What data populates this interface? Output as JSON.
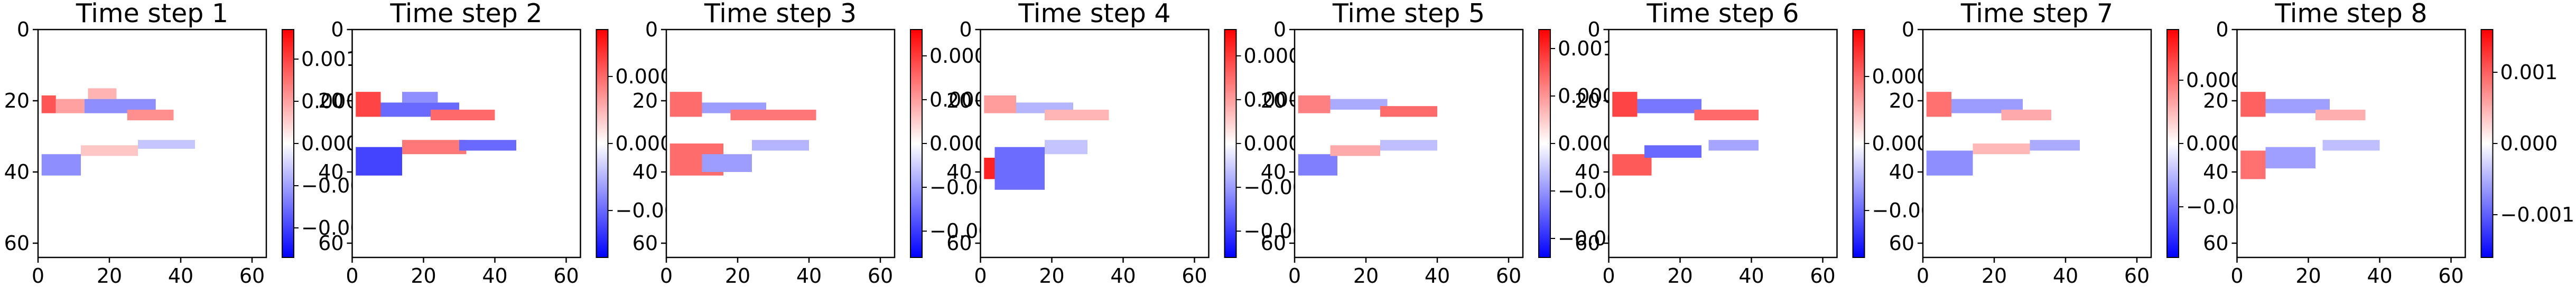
{
  "figure": {
    "colormap": "bwr",
    "colors": {
      "negative": "#0000ff",
      "zero": "#ffffff",
      "positive": "#ff0000",
      "axes": "#000000"
    },
    "image_extent": [
      0,
      64,
      64,
      0
    ],
    "x_ticks": [
      0,
      20,
      40,
      60
    ],
    "y_ticks": [
      0,
      20,
      40,
      60
    ]
  },
  "chart_data": [
    {
      "type": "heatmap",
      "title": "Time step 1",
      "xlabel": "",
      "ylabel": "",
      "xlim": [
        0,
        64
      ],
      "ylim": [
        64,
        0
      ],
      "colorbar": {
        "range": [
          -0.00135,
          0.00135
        ],
        "ticks": [
          0.001,
          0.0005,
          0.0,
          -0.0005,
          -0.001
        ],
        "tick_labels": [
          "0.0010",
          "0.0005",
          "0.0000",
          "−0.0005",
          "−0.0010"
        ]
      },
      "blobs": [
        {
          "x0": 1,
          "x1": 5,
          "y0": 18.5,
          "y1": 23.5,
          "v": 0.0009
        },
        {
          "x0": 5,
          "x1": 13,
          "y0": 19.5,
          "y1": 23.5,
          "v": 0.0005
        },
        {
          "x0": 13,
          "x1": 33,
          "y0": 19.5,
          "y1": 23.5,
          "v": -0.0006
        },
        {
          "x0": 14,
          "x1": 22,
          "y0": 16.5,
          "y1": 19.5,
          "v": 0.0004
        },
        {
          "x0": 25,
          "x1": 38,
          "y0": 22.5,
          "y1": 25.5,
          "v": 0.0006
        },
        {
          "x0": 1,
          "x1": 12,
          "y0": 35,
          "y1": 41,
          "v": -0.0006
        },
        {
          "x0": 12,
          "x1": 28,
          "y0": 32.5,
          "y1": 35.5,
          "v": 0.0003
        },
        {
          "x0": 28,
          "x1": 44,
          "y0": 31,
          "y1": 33.5,
          "v": -0.0003
        }
      ]
    },
    {
      "type": "heatmap",
      "title": "Time step 2",
      "xlabel": "",
      "ylabel": "",
      "xlim": [
        0,
        64
      ],
      "ylim": [
        64,
        0
      ],
      "colorbar": {
        "range": [
          -0.00034,
          0.00034
        ],
        "ticks": [
          0.0002,
          0.0,
          -0.0002
        ],
        "tick_labels": [
          "0.0002",
          "0.0000",
          "−0.0002"
        ]
      },
      "blobs": [
        {
          "x0": 1,
          "x1": 8,
          "y0": 17.5,
          "y1": 24.5,
          "v": 0.00025
        },
        {
          "x0": 8,
          "x1": 30,
          "y0": 20.5,
          "y1": 24.5,
          "v": -0.0002
        },
        {
          "x0": 22,
          "x1": 40,
          "y0": 22.5,
          "y1": 25.5,
          "v": 0.0002
        },
        {
          "x0": 14,
          "x1": 24,
          "y0": 17.5,
          "y1": 20.5,
          "v": -0.00015
        },
        {
          "x0": 1,
          "x1": 14,
          "y0": 33,
          "y1": 41,
          "v": -0.00025
        },
        {
          "x0": 14,
          "x1": 32,
          "y0": 31,
          "y1": 35,
          "v": 0.00018
        },
        {
          "x0": 30,
          "x1": 46,
          "y0": 31,
          "y1": 34,
          "v": -0.0002
        }
      ]
    },
    {
      "type": "heatmap",
      "title": "Time step 3",
      "xlabel": "",
      "ylabel": "",
      "xlim": [
        0,
        64
      ],
      "ylim": [
        64,
        0
      ],
      "colorbar": {
        "range": [
          -0.00052,
          0.00052
        ],
        "ticks": [
          0.0004,
          0.0002,
          0.0,
          -0.0002,
          -0.0004
        ],
        "tick_labels": [
          "0.0004",
          "0.0002",
          "0.0000",
          "−0.0002",
          "−0.0004"
        ]
      },
      "blobs": [
        {
          "x0": 1,
          "x1": 10,
          "y0": 17.5,
          "y1": 24.5,
          "v": 0.0003
        },
        {
          "x0": 10,
          "x1": 28,
          "y0": 20.5,
          "y1": 23.5,
          "v": -0.0002
        },
        {
          "x0": 18,
          "x1": 42,
          "y0": 22.5,
          "y1": 25.5,
          "v": 0.00028
        },
        {
          "x0": 1,
          "x1": 16,
          "y0": 32,
          "y1": 41,
          "v": 0.0003
        },
        {
          "x0": 10,
          "x1": 24,
          "y0": 35,
          "y1": 40,
          "v": -0.0002
        },
        {
          "x0": 24,
          "x1": 40,
          "y0": 31,
          "y1": 34,
          "v": -0.00015
        }
      ]
    },
    {
      "type": "heatmap",
      "title": "Time step 4",
      "xlabel": "",
      "ylabel": "",
      "xlim": [
        0,
        64
      ],
      "ylim": [
        64,
        0
      ],
      "colorbar": {
        "range": [
          -0.00052,
          0.00052
        ],
        "ticks": [
          0.0004,
          0.0002,
          0.0,
          -0.0002,
          -0.0004
        ],
        "tick_labels": [
          "0.0004",
          "0.0002",
          "0.0000",
          "−0.0002",
          "−0.0004"
        ]
      },
      "blobs": [
        {
          "x0": 1,
          "x1": 10,
          "y0": 18.5,
          "y1": 23.5,
          "v": 0.0002
        },
        {
          "x0": 10,
          "x1": 26,
          "y0": 20.5,
          "y1": 23.5,
          "v": -0.00015
        },
        {
          "x0": 18,
          "x1": 36,
          "y0": 22.5,
          "y1": 25.5,
          "v": 0.00015
        },
        {
          "x0": 1,
          "x1": 5,
          "y0": 36,
          "y1": 42,
          "v": 0.00045
        },
        {
          "x0": 4,
          "x1": 18,
          "y0": 33,
          "y1": 45,
          "v": -0.0003
        },
        {
          "x0": 18,
          "x1": 30,
          "y0": 31,
          "y1": 35,
          "v": -0.00012
        }
      ]
    },
    {
      "type": "heatmap",
      "title": "Time step 5",
      "xlabel": "",
      "ylabel": "",
      "xlim": [
        0,
        64
      ],
      "ylim": [
        64,
        0
      ],
      "colorbar": {
        "range": [
          -0.0012,
          0.0012
        ],
        "ticks": [
          0.001,
          0.0005,
          0.0,
          -0.0005,
          -0.001
        ],
        "tick_labels": [
          "0.0010",
          "0.0005",
          "0.0000",
          "−0.0005",
          "−0.0010"
        ]
      },
      "blobs": [
        {
          "x0": 1,
          "x1": 10,
          "y0": 18.5,
          "y1": 23.5,
          "v": 0.0006
        },
        {
          "x0": 10,
          "x1": 26,
          "y0": 19.5,
          "y1": 22.5,
          "v": -0.0004
        },
        {
          "x0": 24,
          "x1": 40,
          "y0": 21.5,
          "y1": 24.5,
          "v": 0.0007
        },
        {
          "x0": 1,
          "x1": 12,
          "y0": 35,
          "y1": 41,
          "v": -0.0006
        },
        {
          "x0": 10,
          "x1": 24,
          "y0": 32.5,
          "y1": 35.5,
          "v": 0.0004
        },
        {
          "x0": 24,
          "x1": 40,
          "y0": 31,
          "y1": 34,
          "v": -0.0003
        }
      ]
    },
    {
      "type": "heatmap",
      "title": "Time step 6",
      "xlabel": "",
      "ylabel": "",
      "xlim": [
        0,
        64
      ],
      "ylim": [
        64,
        0
      ],
      "colorbar": {
        "range": [
          -0.00034,
          0.00034
        ],
        "ticks": [
          0.0002,
          0.0,
          -0.0002
        ],
        "tick_labels": [
          "0.0002",
          "0.0000",
          "−0.0002"
        ]
      },
      "blobs": [
        {
          "x0": 1,
          "x1": 8,
          "y0": 17.5,
          "y1": 24.5,
          "v": 0.00025
        },
        {
          "x0": 8,
          "x1": 26,
          "y0": 19.5,
          "y1": 23.5,
          "v": -0.00018
        },
        {
          "x0": 24,
          "x1": 42,
          "y0": 22.5,
          "y1": 25.5,
          "v": 0.0002
        },
        {
          "x0": 1,
          "x1": 12,
          "y0": 35,
          "y1": 41,
          "v": 0.00022
        },
        {
          "x0": 10,
          "x1": 26,
          "y0": 32.5,
          "y1": 36,
          "v": -0.0002
        },
        {
          "x0": 28,
          "x1": 42,
          "y0": 31,
          "y1": 34,
          "v": -0.00012
        }
      ]
    },
    {
      "type": "heatmap",
      "title": "Time step 7",
      "xlabel": "",
      "ylabel": "",
      "xlim": [
        0,
        64
      ],
      "ylim": [
        64,
        0
      ],
      "colorbar": {
        "range": [
          -0.0009,
          0.0009
        ],
        "ticks": [
          0.0005,
          0.0,
          -0.0005
        ],
        "tick_labels": [
          "0.0005",
          "0.0000",
          "−0.0005"
        ]
      },
      "blobs": [
        {
          "x0": 1,
          "x1": 8,
          "y0": 17.5,
          "y1": 24.5,
          "v": 0.0005
        },
        {
          "x0": 8,
          "x1": 28,
          "y0": 19.5,
          "y1": 23.5,
          "v": -0.00035
        },
        {
          "x0": 22,
          "x1": 36,
          "y0": 22.5,
          "y1": 25.5,
          "v": 0.0003
        },
        {
          "x0": 1,
          "x1": 14,
          "y0": 34,
          "y1": 41,
          "v": -0.0004
        },
        {
          "x0": 14,
          "x1": 30,
          "y0": 32,
          "y1": 35,
          "v": 0.00025
        },
        {
          "x0": 30,
          "x1": 44,
          "y0": 31,
          "y1": 34,
          "v": -0.0003
        }
      ]
    },
    {
      "type": "heatmap",
      "title": "Time step 8",
      "xlabel": "",
      "ylabel": "",
      "xlim": [
        0,
        64
      ],
      "ylim": [
        64,
        0
      ],
      "colorbar": {
        "range": [
          -0.0016,
          0.0016
        ],
        "ticks": [
          0.001,
          0.0,
          -0.001
        ],
        "tick_labels": [
          "0.001",
          "0.000",
          "−0.001"
        ]
      },
      "blobs": [
        {
          "x0": 1,
          "x1": 8,
          "y0": 17.5,
          "y1": 24.5,
          "v": 0.001
        },
        {
          "x0": 8,
          "x1": 26,
          "y0": 19.5,
          "y1": 23.5,
          "v": -0.0006
        },
        {
          "x0": 22,
          "x1": 36,
          "y0": 22.5,
          "y1": 25.5,
          "v": 0.0005
        },
        {
          "x0": 1,
          "x1": 8,
          "y0": 34,
          "y1": 42,
          "v": 0.0009
        },
        {
          "x0": 8,
          "x1": 22,
          "y0": 33,
          "y1": 39,
          "v": -0.0006
        },
        {
          "x0": 24,
          "x1": 40,
          "y0": 31,
          "y1": 34,
          "v": -0.0004
        }
      ]
    }
  ]
}
